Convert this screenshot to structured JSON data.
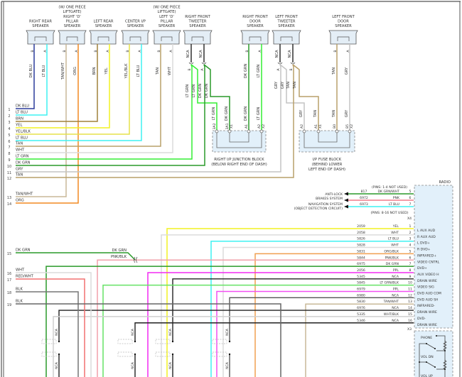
{
  "speakers": [
    {
      "name_lines": [
        "RIGHT REAR",
        "SPEAKER"
      ],
      "pin_b": "B",
      "pin_a": "A",
      "wire_b": "DK BLU",
      "wire_a": "LT BLU"
    },
    {
      "name_lines": [
        "(W/ ONE PIECE",
        "LIFTGATE)",
        "RIGHT 'D'",
        "PILLAR",
        "SPEAKER"
      ],
      "pin_b": "B",
      "pin_a": "A",
      "wire_b": "TAN/WHT",
      "wire_a": "ORG"
    },
    {
      "name_lines": [
        "LEFT REAR",
        "SPEAKER"
      ],
      "pin_b": "B",
      "pin_a": "A",
      "wire_b": "BRN",
      "wire_a": "YEL"
    },
    {
      "name_lines": [
        "CENTER I/P",
        "SPEAKER"
      ],
      "pin_b": "B",
      "pin_a": "A",
      "wire_b": "YEL/BLK",
      "wire_a": "LT BLU"
    },
    {
      "name_lines": [
        "(W/ ONE PIECE",
        "LIFTGATE)",
        "LEFT 'D'",
        "PILLAR",
        "SPEAKER"
      ],
      "pin_b": "B",
      "pin_a": "A",
      "wire_b": "TAN",
      "wire_a": "WHT"
    },
    {
      "name_lines": [
        "RIGHT FRONT",
        "TWEETER",
        "SPEAKER"
      ],
      "pin_b": "B",
      "pin_a": "A",
      "wire_b": "NCA",
      "wire_a": "NCA",
      "branch_labels": [
        "LT GRN",
        "LT GRN",
        "DK GRN",
        "DK GRN"
      ]
    },
    {
      "name_lines": [
        "RIGHT FRONT",
        "DOOR",
        "SPEAKER"
      ],
      "pin_b": "B",
      "pin_a": "A",
      "wire_b": "DK GRN",
      "wire_a": "LT GRN"
    },
    {
      "name_lines": [
        "LEFT FRONT",
        "TWEETER",
        "SPEAKER"
      ],
      "pin_b": "A",
      "pin_a": "B",
      "wire_b": "NCA",
      "wire_a": "NCA",
      "branch_labels": [
        "GRY",
        "GRY",
        "TAN",
        "TAN"
      ]
    },
    {
      "name_lines": [
        "LEFT FRONT",
        "DOOR",
        "SPEAKER"
      ],
      "pin_b": "B",
      "pin_a": "A",
      "wire_b": "TAN",
      "wire_a": "GRY"
    }
  ],
  "rail": {
    "rows": [
      {
        "num": "1",
        "label": "DK BLU",
        "color": "#2b3c9c"
      },
      {
        "num": "2",
        "label": "LT BLU",
        "color": "#3ff2f2"
      },
      {
        "num": "3",
        "label": "BRN",
        "color": "#a0823a"
      },
      {
        "num": "4",
        "label": "YEL",
        "color": "#f2f222"
      },
      {
        "num": "5",
        "label": "YEL/BLK",
        "color": "#e6e24a"
      },
      {
        "num": "6",
        "label": "LT BLU",
        "color": "#3ff2f2"
      },
      {
        "num": "7",
        "label": "TAN",
        "color": "#b9a06a"
      },
      {
        "num": "8",
        "label": "WHT",
        "color": "#dcdcdc"
      },
      {
        "num": "9",
        "label": "LT GRN",
        "color": "#33ee33"
      },
      {
        "num": "10",
        "label": "DK GRN",
        "color": "#2a9a2a"
      },
      {
        "num": "11",
        "label": "GRY",
        "color": "#c4c4c4"
      },
      {
        "num": "12",
        "label": "TAN",
        "color": "#b9a06a"
      },
      {
        "num": "13",
        "label": "TAN/WHT",
        "color": "#c9b998"
      },
      {
        "num": "14",
        "label": "ORG",
        "color": "#f28a22"
      }
    ],
    "lower_rows": [
      {
        "num": "15",
        "label": "DK GRN",
        "color": "#2a9a2a"
      },
      {
        "num": "16",
        "label": "WHT",
        "color": "#dcdcdc"
      },
      {
        "num": "17",
        "label": "RED/WHT",
        "color": "#f27070"
      },
      {
        "num": "18",
        "label": "BLK",
        "color": "#777777"
      },
      {
        "num": "19",
        "label": "BLK",
        "color": "#666666"
      }
    ],
    "splice_labels": [
      "DK GRN",
      "PNK/BLK"
    ]
  },
  "junction_block": {
    "pins": [
      "3A2",
      "3A1",
      "X1",
      "A1",
      "A2",
      "X2"
    ],
    "wire_labels": [
      "LT GRN",
      "DK GRN",
      "DK GRN",
      "LT GRN"
    ],
    "title_lines": [
      "RIGHT I/P JUNCTION BLOCK",
      "(BELOW RIGHT END OF DASH)"
    ]
  },
  "fuse_block": {
    "pins": [
      "A2",
      "A1",
      "X1",
      "B0",
      "B5",
      "X2"
    ],
    "wire_labels": [
      "GRY",
      "TAN",
      "TAN",
      "GRY"
    ],
    "title_lines": [
      "I/P FUSE BLOCK",
      "(BEHIND LOWER",
      "LEFT END OF DASH)"
    ]
  },
  "radio": {
    "title": "RADIO",
    "note_top": "(PINS: 1-4 NOT USED)",
    "note_mid": "(PINS: 8-16 NOT USED)",
    "connector_x4": "X4",
    "connector_x3": "X3",
    "outputs": [
      {
        "dest_lines": [
          "ANTI-LOCK",
          "BRAKES SYSTEM"
        ],
        "circuit": "817",
        "color_label": "DK GRN/WHT",
        "pin": "5",
        "function": "VSS",
        "color": "#2a9a2a"
      },
      {
        "dest_lines": [
          "NAVIGATION SYSTEM"
        ],
        "circuit": "6972",
        "color_label": "PNK",
        "pin": "6",
        "function": "CAMERA +",
        "color": "#f27a8a"
      },
      {
        "dest_lines": [
          "(OBJECT DETECTION CIRCUIT)"
        ],
        "circuit": "6973",
        "color_label": "LT BLU",
        "pin": "7",
        "function": "CAMERA -",
        "color": "#3ff2f2"
      }
    ],
    "pins": [
      {
        "circuit": "2059",
        "color_label": "YEL",
        "pin": "1",
        "function": "L AUX AUD",
        "color": "#f2f222"
      },
      {
        "circuit": "2058",
        "color_label": "WHT",
        "pin": "2",
        "function": "R AUX AUD",
        "color": "#dcdcdc"
      },
      {
        "circuit": "5826",
        "color_label": "LT BLU",
        "pin": "3",
        "function": "L DVD+",
        "color": "#3ff2f2"
      },
      {
        "circuit": "5828",
        "color_label": "WHT",
        "pin": "4",
        "function": "R DVD+",
        "color": "#dcdcdc"
      },
      {
        "circuit": "5831",
        "color_label": "ORG/BLK",
        "pin": "5",
        "function": "INFRARED+",
        "color": "#f0a050"
      },
      {
        "circuit": "5844",
        "color_label": "PNK/BLK",
        "pin": "6",
        "function": "VIDEO CNTRL",
        "color": "#f2a0aa"
      },
      {
        "circuit": "6975",
        "color_label": "DK GRN",
        "pin": "7",
        "function": "DVD+",
        "color": "#2a9a2a"
      },
      {
        "circuit": "2056",
        "color_label": "PPL",
        "pin": "8",
        "function": "AUX VIDEO H",
        "color": "#f22af2"
      },
      {
        "circuit": "5345",
        "color_label": "NCA",
        "pin": "9",
        "function": "DRAIN WIRE",
        "color": "#222222"
      },
      {
        "circuit": "5845",
        "color_label": "LT GRN/BLK",
        "pin": "10",
        "function": "VIDEO SIG",
        "color": "#66e266"
      },
      {
        "circuit": "6979",
        "color_label": "PPL",
        "pin": "11",
        "function": "DVD AUD COM",
        "color": "#f250f2"
      },
      {
        "circuit": "6980",
        "color_label": "NCA",
        "pin": "12",
        "function": "DVD AUD SH",
        "color": "#555555"
      },
      {
        "circuit": "5830",
        "color_label": "TAN/WHT",
        "pin": "13",
        "function": "INFRARED-",
        "color": "#c9b998"
      },
      {
        "circuit": "6976",
        "color_label": "NCA",
        "pin": "14",
        "function": "DRAIN WIRE",
        "color": "#222222"
      },
      {
        "circuit": "5335",
        "color_label": "WHT/BLK",
        "pin": "15",
        "function": "DVD-",
        "color": "#cfcfcf"
      },
      {
        "circuit": "5346",
        "color_label": "NCA",
        "pin": "16",
        "function": "DRAIN WIRE",
        "color": "#222222"
      }
    ],
    "switch_labels": [
      "PHONE",
      "VOL DN",
      "VOL UP"
    ]
  },
  "nca_label": "NCA"
}
